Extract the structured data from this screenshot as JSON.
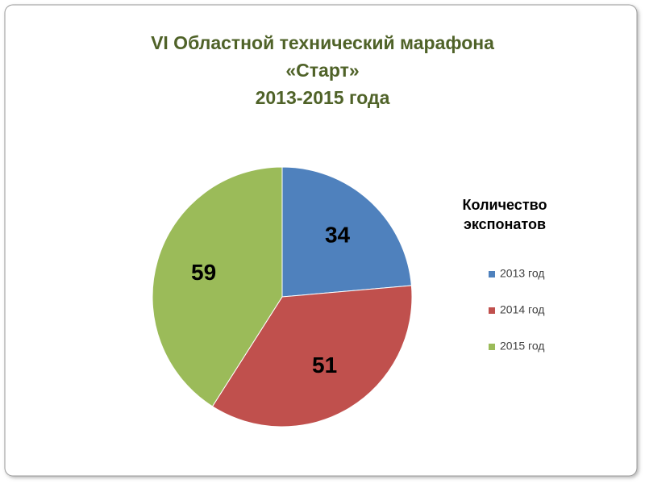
{
  "chart_data": {
    "type": "pie",
    "title": [
      "VI Областной технический марафона",
      "«Старт»",
      "2013-2015 года"
    ],
    "legend_title": [
      "Количество",
      "экспонатов"
    ],
    "categories": [
      "2013 год",
      "2014 год",
      "2015 год"
    ],
    "values": [
      34,
      51,
      59
    ],
    "colors": [
      "#4f81bd",
      "#c0504d",
      "#9bbb59"
    ],
    "legend_position": "right"
  }
}
